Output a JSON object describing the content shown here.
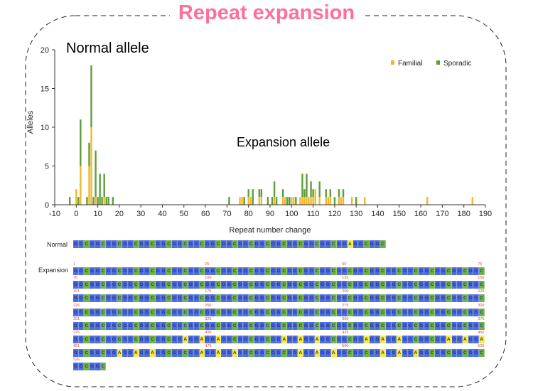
{
  "title": "Repeat expansion",
  "annotations": {
    "normal": "Normal allele",
    "expansion": "Expansion allele"
  },
  "colors": {
    "familial": "#efb92c",
    "sporadic": "#5d9e3a",
    "title": "#ff6f9c",
    "G": "#4f6ede",
    "C": "#6fb444",
    "A": "#f4ea4c"
  },
  "chart_data": {
    "type": "bar",
    "stacked": true,
    "xlabel": "Repeat number change",
    "ylabel": "Alleles",
    "xlim": [
      -10,
      190
    ],
    "ylim": [
      0,
      20
    ],
    "xticks": [
      -10,
      0,
      10,
      20,
      30,
      40,
      50,
      60,
      70,
      80,
      90,
      100,
      110,
      120,
      130,
      140,
      150,
      160,
      170,
      180,
      190
    ],
    "yticks": [
      0,
      5,
      10,
      15,
      20
    ],
    "legend": {
      "position": "top-right",
      "entries": [
        "Familial",
        "Sporadic"
      ]
    },
    "x": [
      -3,
      0,
      1,
      2,
      5,
      6,
      7,
      8,
      9,
      10,
      11,
      12,
      13,
      14,
      15,
      17,
      71,
      76,
      77,
      78,
      80,
      81,
      82,
      85,
      86,
      89,
      91,
      92,
      93,
      96,
      97,
      98,
      99,
      100,
      101,
      102,
      104,
      105,
      106,
      107,
      108,
      109,
      110,
      111,
      113,
      116,
      117,
      118,
      120,
      122,
      123,
      124,
      128,
      130,
      134,
      163,
      184
    ],
    "familial": [
      0,
      2,
      0,
      5,
      0,
      5,
      10,
      0,
      1,
      0,
      0,
      0,
      1,
      0,
      0,
      0,
      0,
      1,
      1,
      0,
      1,
      1,
      0,
      1,
      1,
      0,
      0,
      1,
      0,
      1,
      1,
      0,
      0,
      1,
      1,
      0,
      1,
      1,
      1,
      1,
      1,
      1,
      1,
      2,
      1,
      1,
      1,
      1,
      0,
      1,
      1,
      1,
      1,
      0,
      1,
      1,
      1
    ],
    "sporadic": [
      1,
      0,
      1,
      6,
      1,
      3,
      8,
      1,
      6,
      1,
      4,
      1,
      3,
      1,
      1,
      1,
      1,
      0,
      0,
      1,
      1,
      0,
      2,
      1,
      1,
      1,
      1,
      2,
      1,
      1,
      0,
      1,
      1,
      0,
      0,
      1,
      0,
      3,
      1,
      3,
      0,
      2,
      1,
      0,
      2,
      1,
      0,
      1,
      1,
      1,
      0,
      1,
      0,
      1,
      0,
      0,
      0
    ]
  },
  "sequence": {
    "normal_label": "Normal",
    "expansion_label": "Expansion",
    "normal": "GGCGGCGGCGGCGGCGGCGGCGGCGGCGGCGGCGGCGGCGGCGGCGGCGGAGGCGGC",
    "expansion_rows": [
      {
        "positions": [
          "1",
          "25",
          "50",
          "75"
        ],
        "seq": "GGCGGCGGCGGCGGCGGCGGCGGCGGCGGCGGCGGCGGCGGCGGCGGCGGCGGCGGCGGCGGCGGCGGCGGCGGC"
      },
      {
        "positions": [
          "76",
          "100",
          "125",
          "150"
        ],
        "seq": "GGCGGCGGCGGCGGCGGCGGCGGCGGCGGCGGCGGCGGCGGCGGCGGCGGCGGCGGCGGCGGCGGCGGCGGCGGC"
      },
      {
        "positions": [
          "151",
          "175",
          "200",
          "225"
        ],
        "seq": "GGCGGCGGCGGCGGCGGCGGCGGCGGCGGCGGCGGCGGCGGCGGCGGCGGCGGCGGCGGCGGCGGCGGCGGCGGC"
      },
      {
        "positions": [
          "226",
          "250",
          "275",
          "300"
        ],
        "seq": "GGCGGCGGCGGCGGCGGCGGCGGCGGCGGCGGCGGCGGCGGCGGCGGCGGCGGCGGCGGCGGCGGCGGCGGCGGC"
      },
      {
        "positions": [
          "301",
          "325",
          "350",
          "375"
        ],
        "seq": "GGCGGCGGCGGCGGCGGCGGCGGCGGCGGCGGCGGCGGCGGCGGCGGCGGCGGCGGCGGCGGCGGCGGCGGCGGC"
      },
      {
        "positions": [
          "376",
          "400",
          "425",
          "450"
        ],
        "seq": "GGCGGCGGCGGCGGCGGCGGAGGAGGAGGCGGCGGCGGAGGAGGAGGCGGCGGAGGAGGAGGCGGCGGAGGAGGA"
      },
      {
        "positions": [
          "451",
          "475",
          "500",
          "525"
        ],
        "seq": "GGCGGCGGAGGAGGAGGCGGCGGAGGAGGAGGCGGCGGCGGAGGAGGAGGCGGCGGAGGAGGAGGCGGCGGCGGC"
      },
      {
        "positions": [
          "526"
        ],
        "seq": "GGCGGC"
      }
    ]
  }
}
